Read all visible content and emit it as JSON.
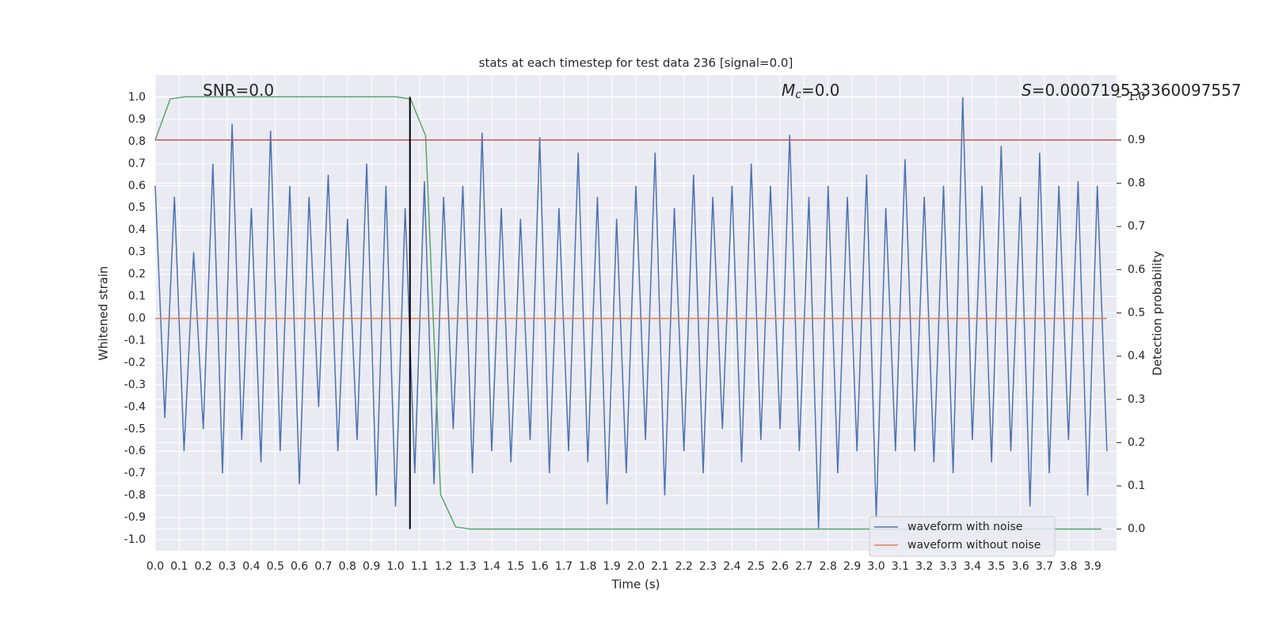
{
  "chart_data": {
    "type": "line",
    "title": "stats at each timestep for test data 236 [signal=0.0]",
    "x_label": "Time (s)",
    "y_label": "Whitened strain",
    "y2_label": "Detection probability",
    "annotations": [
      {
        "text": "SNR=0.0"
      },
      {
        "symbol": "M",
        "subscript": "c",
        "text": "=0.0"
      },
      {
        "symbol": "S",
        "text": "=0.000719533360097557"
      }
    ],
    "xlim": [
      0,
      4
    ],
    "ylim": [
      -1.05,
      1.1
    ],
    "y2lim": [
      -0.05,
      1.05
    ],
    "grid": true,
    "legend": "lower right",
    "xticks": [
      {
        "value": 0,
        "label": "0.0"
      },
      0.1,
      0.2,
      0.3,
      0.4,
      0.5,
      0.6,
      0.7,
      0.8,
      0.9,
      {
        "value": 1,
        "label": "1.0"
      },
      1.1,
      1.2,
      1.3,
      1.4,
      1.5,
      1.6,
      1.7,
      1.8,
      1.9,
      {
        "value": 2,
        "label": "2.0"
      },
      2.1,
      2.2,
      2.3,
      2.4,
      2.5,
      2.6,
      2.7,
      2.8,
      2.9,
      {
        "value": 3,
        "label": "3.0"
      },
      3.1,
      3.2,
      3.3,
      3.4,
      3.5,
      3.6,
      3.7,
      3.8,
      3.9
    ],
    "yticks": [
      {
        "value": 1,
        "label": "1.0"
      },
      0.9,
      0.8,
      0.7,
      0.6,
      0.5,
      0.4,
      0.3,
      0.2,
      0.1,
      {
        "value": 0,
        "label": "0.0"
      },
      -0.1,
      -0.2,
      -0.3,
      -0.4,
      -0.5,
      -0.6,
      -0.7,
      -0.8,
      -0.9,
      {
        "value": -1,
        "label": "-1.0"
      }
    ],
    "y2ticks": [
      {
        "value": 1,
        "label": "1.0"
      },
      0.9,
      0.8,
      0.7,
      0.6,
      0.5,
      0.4,
      0.3,
      0.2,
      0.1,
      {
        "value": 0,
        "label": "0.0"
      }
    ],
    "series": [
      {
        "name": "waveform with noise",
        "color": "#4c72b0",
        "x": [
          0,
          0.04,
          0.08,
          0.12,
          0.16,
          0.2,
          0.24,
          0.28,
          0.32,
          0.36,
          0.4,
          0.44,
          0.48,
          0.52,
          0.56,
          0.6,
          0.64,
          0.68,
          0.72,
          0.76,
          0.8,
          0.84,
          0.88,
          0.92,
          0.96,
          1,
          1.04,
          1.08,
          1.12,
          1.16,
          1.2,
          1.24,
          1.28,
          1.32,
          1.36,
          1.4,
          1.44,
          1.48,
          1.52,
          1.56,
          1.6,
          1.64,
          1.68,
          1.72,
          1.76,
          1.8,
          1.84,
          1.88,
          1.92,
          1.96,
          2,
          2.04,
          2.08,
          2.12,
          2.16,
          2.2,
          2.24,
          2.28,
          2.32,
          2.36,
          2.4,
          2.44,
          2.48,
          2.52,
          2.56,
          2.6,
          2.64,
          2.68,
          2.72,
          2.76,
          2.8,
          2.84,
          2.88,
          2.92,
          2.96,
          3,
          3.04,
          3.08,
          3.12,
          3.16,
          3.2,
          3.24,
          3.28,
          3.32,
          3.36,
          3.4,
          3.44,
          3.48,
          3.52,
          3.56,
          3.6,
          3.64,
          3.68,
          3.72,
          3.76,
          3.8,
          3.84,
          3.88,
          3.92,
          3.96
        ],
        "values": [
          0.6,
          -0.45,
          0.55,
          -0.6,
          0.3,
          -0.5,
          0.7,
          -0.7,
          0.88,
          -0.55,
          0.5,
          -0.65,
          0.85,
          -0.6,
          0.6,
          -0.75,
          0.55,
          -0.4,
          0.65,
          -0.6,
          0.45,
          -0.55,
          0.7,
          -0.8,
          0.6,
          -0.85,
          0.5,
          -0.7,
          0.62,
          -0.75,
          0.55,
          -0.5,
          0.6,
          -0.7,
          0.84,
          -0.6,
          0.5,
          -0.65,
          0.45,
          -0.55,
          0.82,
          -0.7,
          0.5,
          -0.6,
          0.75,
          -0.65,
          0.55,
          -0.84,
          0.45,
          -0.7,
          0.6,
          -0.55,
          0.75,
          -0.8,
          0.5,
          -0.6,
          0.65,
          -0.7,
          0.55,
          -0.5,
          0.6,
          -0.65,
          0.7,
          -0.55,
          0.6,
          -0.5,
          0.83,
          -0.6,
          0.55,
          -0.95,
          0.6,
          -0.7,
          0.55,
          -0.6,
          0.65,
          -0.9,
          0.5,
          -0.6,
          0.72,
          -0.6,
          0.55,
          -0.65,
          0.6,
          -0.7,
          1.0,
          -0.55,
          0.6,
          -0.65,
          0.78,
          -0.6,
          0.55,
          -0.85,
          0.75,
          -0.7,
          0.6,
          -0.55,
          0.62,
          -0.8,
          0.6,
          -0.6
        ]
      },
      {
        "name": "waveform without noise",
        "color": "#dd8452",
        "x": [
          0,
          3.96
        ],
        "values": [
          0,
          0
        ]
      },
      {
        "color": "#55a868",
        "axis": "y2",
        "x": [
          0,
          0.0625,
          0.125,
          0.1875,
          0.25,
          0.3125,
          0.375,
          0.4375,
          0.5,
          0.5625,
          0.625,
          0.6875,
          0.75,
          0.8125,
          0.875,
          0.9375,
          1,
          1.0625,
          1.125,
          1.1875,
          1.25,
          1.3125,
          1.375,
          1.4375,
          1.5,
          1.5625,
          1.625,
          1.6875,
          1.75,
          1.8125,
          1.875,
          1.9375,
          2,
          2.0625,
          2.125,
          2.1875,
          2.25,
          2.3125,
          2.375,
          2.4375,
          2.5,
          2.5625,
          2.625,
          2.6875,
          2.75,
          2.8125,
          2.875,
          2.9375,
          3,
          3.0625,
          3.125,
          3.1875,
          3.25,
          3.3125,
          3.375,
          3.4375,
          3.5,
          3.5625,
          3.625,
          3.6875,
          3.75,
          3.8125,
          3.875,
          3.9375
        ],
        "values": [
          0.9,
          0.995,
          1,
          1,
          1,
          1,
          1,
          1,
          1,
          1,
          1,
          1,
          1,
          1,
          1,
          1,
          1,
          0.995,
          0.91,
          0.08,
          0.005,
          0,
          0,
          0,
          0,
          0,
          0,
          0,
          0,
          0,
          0,
          0,
          0,
          0,
          0,
          0,
          0,
          0,
          0,
          0,
          0,
          0,
          0,
          0,
          0,
          0,
          0,
          0,
          0,
          0,
          0,
          0,
          0,
          0,
          0,
          0,
          0,
          0,
          0,
          0,
          0,
          0,
          0,
          0
        ]
      }
    ],
    "threshold": {
      "value": 0.9,
      "axis": "y2",
      "color": "#c44e52"
    },
    "marker": {
      "x": 1.06,
      "range": [
        0,
        1
      ],
      "axis": "y2",
      "color": "#000000"
    }
  }
}
